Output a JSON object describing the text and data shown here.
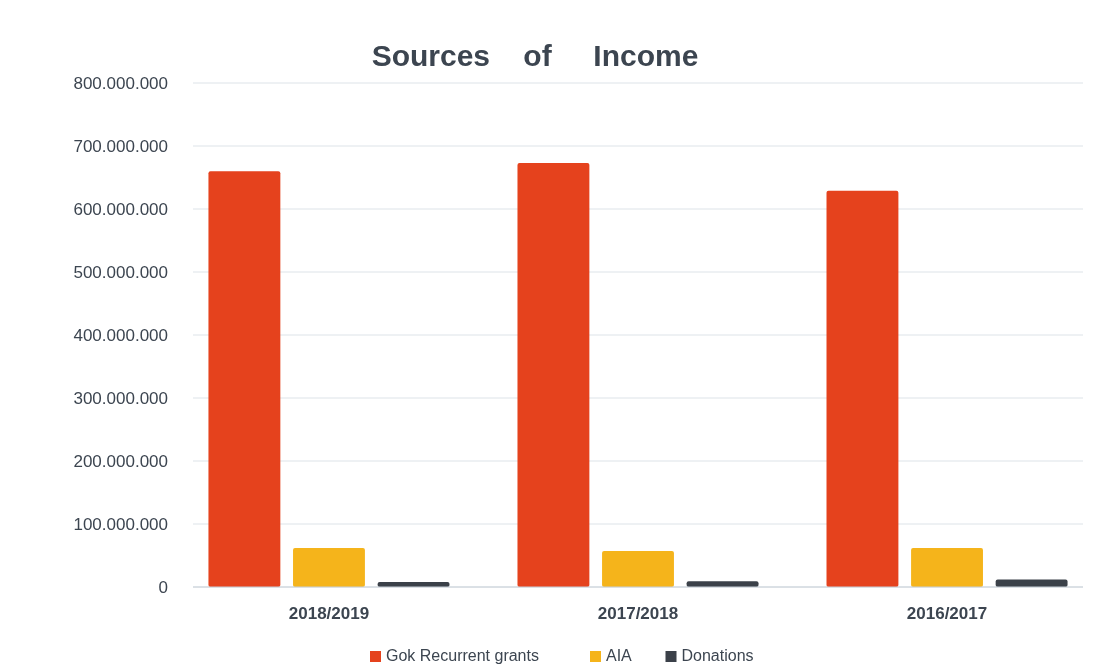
{
  "chart_data": {
    "type": "bar",
    "title": "Sources    of     Income",
    "categories": [
      "2018/2019",
      "2017/2018",
      "2016/2017"
    ],
    "series": [
      {
        "name": "Gok Recurrent grants",
        "color": "#e5421d",
        "values": [
          660000000,
          673000000,
          629000000
        ]
      },
      {
        "name": "AIA",
        "color": "#f5b41b",
        "values": [
          62000000,
          57000000,
          62000000
        ]
      },
      {
        "name": "Donations",
        "color": "#3b4149",
        "values": [
          8000000,
          9000000,
          12000000
        ]
      }
    ],
    "ylim": [
      0,
      800000000
    ],
    "yticks": [
      {
        "value": 0,
        "label": "0"
      },
      {
        "value": 100000000,
        "label": "100.000.000"
      },
      {
        "value": 200000000,
        "label": "200.000.000"
      },
      {
        "value": 300000000,
        "label": "300.000.000"
      },
      {
        "value": 400000000,
        "label": "400.000.000"
      },
      {
        "value": 500000000,
        "label": "500.000.000"
      },
      {
        "value": 600000000,
        "label": "600.000.000"
      },
      {
        "value": 700000000,
        "label": "700.000.000"
      },
      {
        "value": 800000000,
        "label": "800.000.000"
      }
    ],
    "grid": "y",
    "legend": "bottom"
  }
}
